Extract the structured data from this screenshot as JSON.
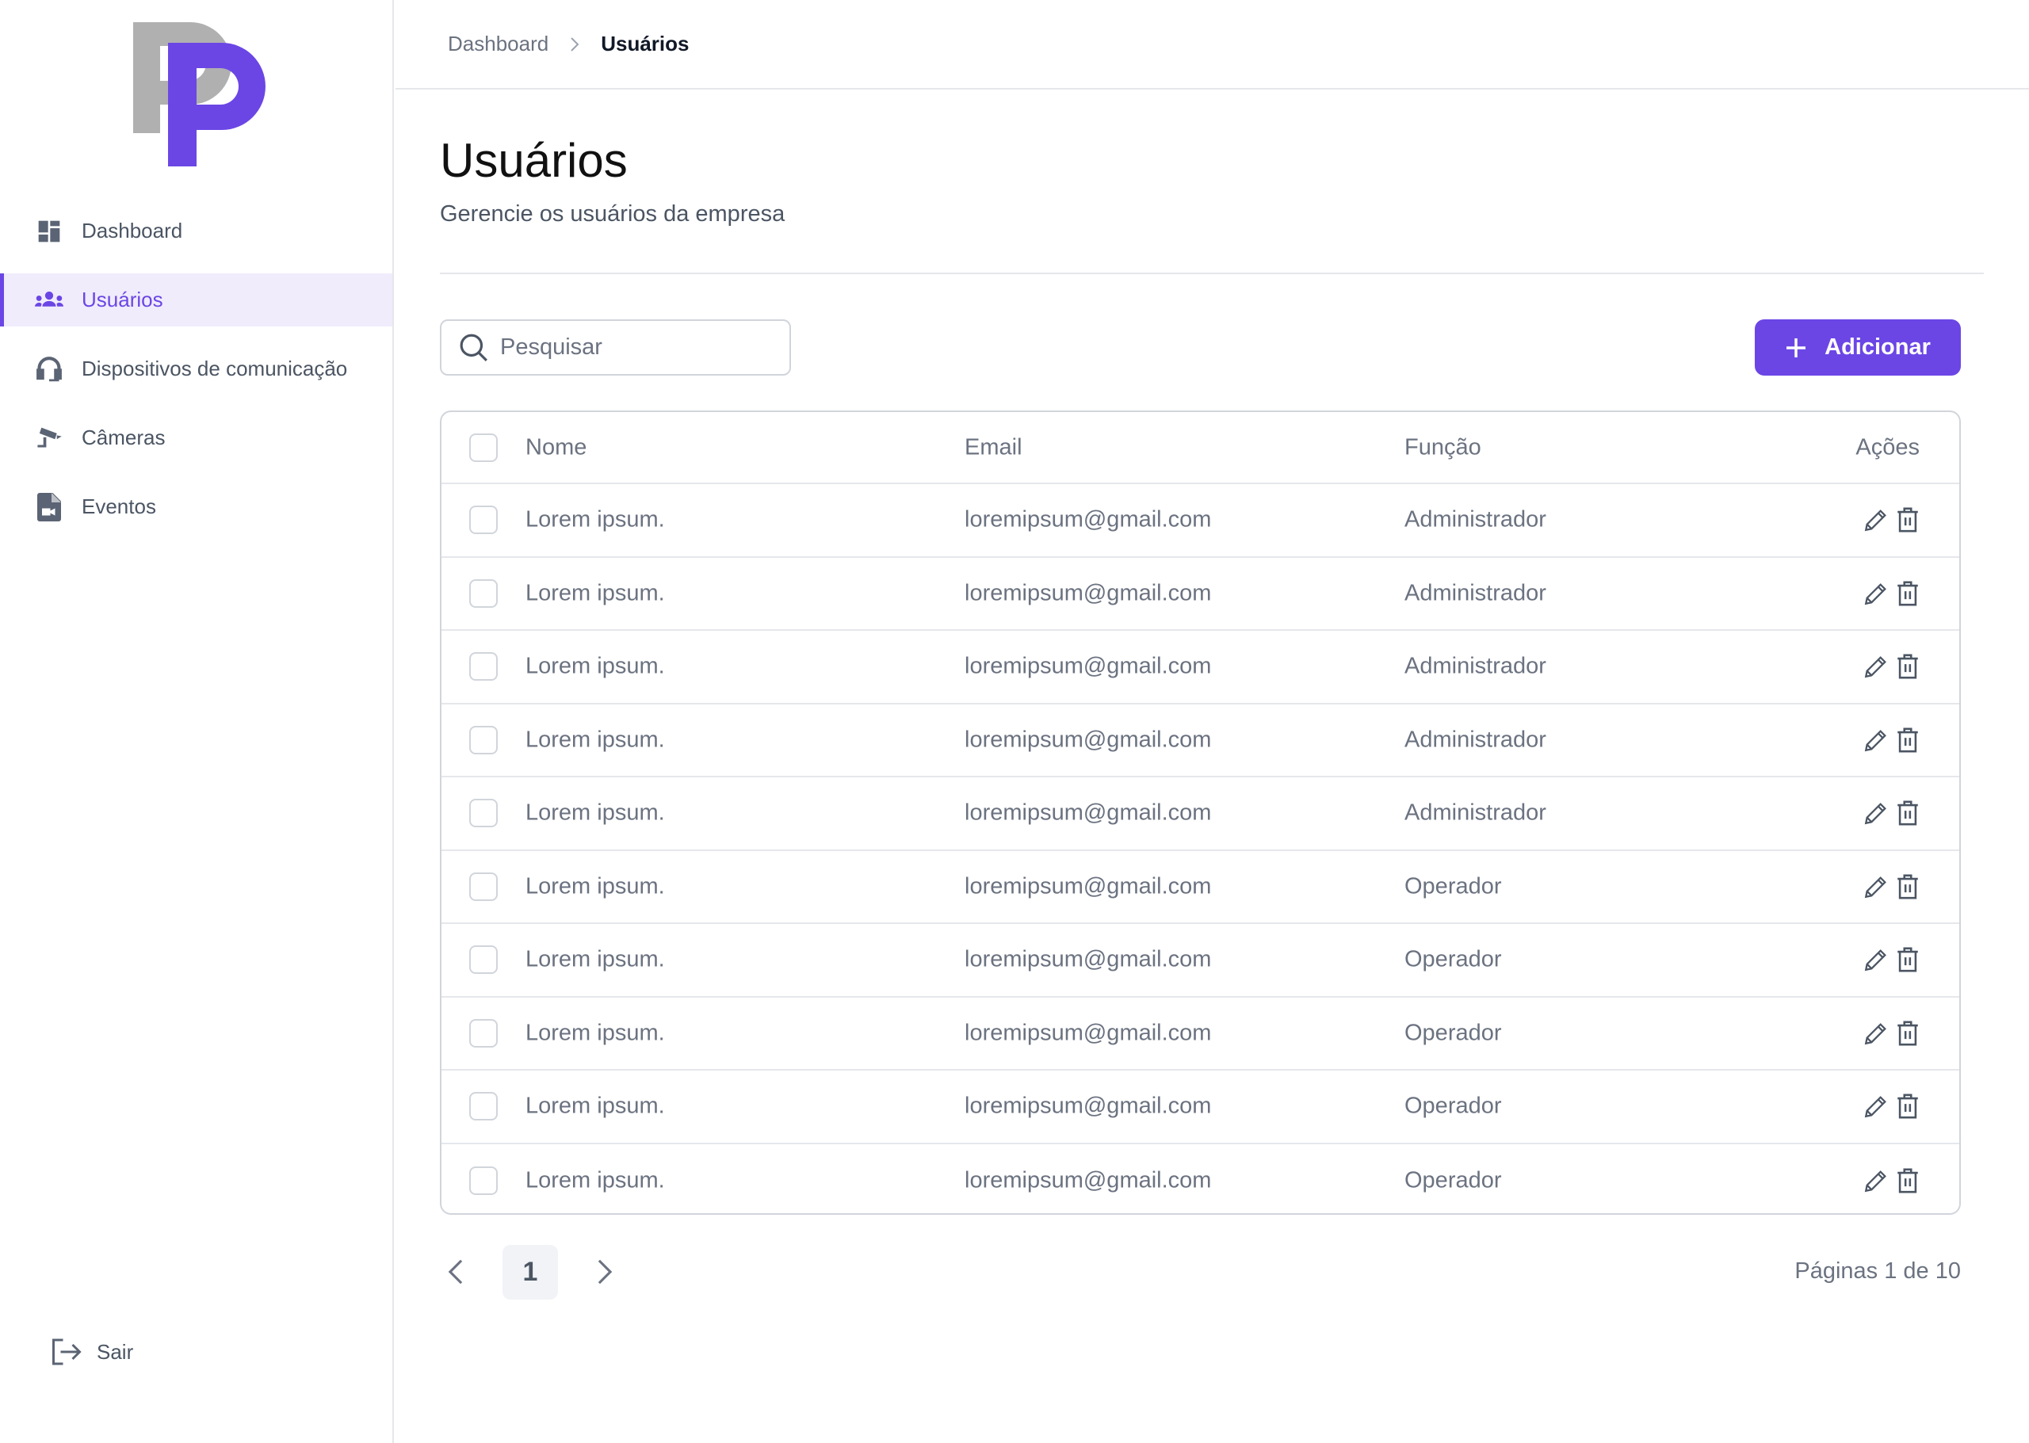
{
  "brand": {
    "logo_text": "PP",
    "logo_colors": {
      "first": "#b0b0b0",
      "second": "#6b46e5"
    }
  },
  "sidebar": {
    "items": [
      {
        "label": "Dashboard",
        "icon": "dashboard-icon",
        "active": false
      },
      {
        "label": "Usuários",
        "icon": "users-icon",
        "active": true
      },
      {
        "label": "Dispositivos de comunicação",
        "icon": "headset-icon",
        "active": false
      },
      {
        "label": "Câmeras",
        "icon": "camera-icon",
        "active": false
      },
      {
        "label": "Eventos",
        "icon": "video-file-icon",
        "active": false
      }
    ],
    "logout_label": "Sair"
  },
  "breadcrumb": [
    "Dashboard",
    "Usuários"
  ],
  "page": {
    "title": "Usuários",
    "subtitle": "Gerencie os usuários da empresa"
  },
  "search": {
    "placeholder": "Pesquisar",
    "value": ""
  },
  "add_button": {
    "label": "Adicionar"
  },
  "table": {
    "columns": [
      "Nome",
      "Email",
      "Função",
      "Ações"
    ],
    "rows": [
      {
        "name": "Lorem ipsum.",
        "email": "loremipsum@gmail.com",
        "role": "Administrador"
      },
      {
        "name": "Lorem ipsum.",
        "email": "loremipsum@gmail.com",
        "role": "Administrador"
      },
      {
        "name": "Lorem ipsum.",
        "email": "loremipsum@gmail.com",
        "role": "Administrador"
      },
      {
        "name": "Lorem ipsum.",
        "email": "loremipsum@gmail.com",
        "role": "Administrador"
      },
      {
        "name": "Lorem ipsum.",
        "email": "loremipsum@gmail.com",
        "role": "Administrador"
      },
      {
        "name": "Lorem ipsum.",
        "email": "loremipsum@gmail.com",
        "role": "Operador"
      },
      {
        "name": "Lorem ipsum.",
        "email": "loremipsum@gmail.com",
        "role": "Operador"
      },
      {
        "name": "Lorem ipsum.",
        "email": "loremipsum@gmail.com",
        "role": "Operador"
      },
      {
        "name": "Lorem ipsum.",
        "email": "loremipsum@gmail.com",
        "role": "Operador"
      },
      {
        "name": "Lorem ipsum.",
        "email": "loremipsum@gmail.com",
        "role": "Operador"
      }
    ]
  },
  "pagination": {
    "current_page": "1",
    "info": "Páginas 1 de 10"
  },
  "colors": {
    "accent": "#6b46e5",
    "active_bg": "#f0ecfc",
    "text": "#6b7280",
    "title": "#111111"
  }
}
